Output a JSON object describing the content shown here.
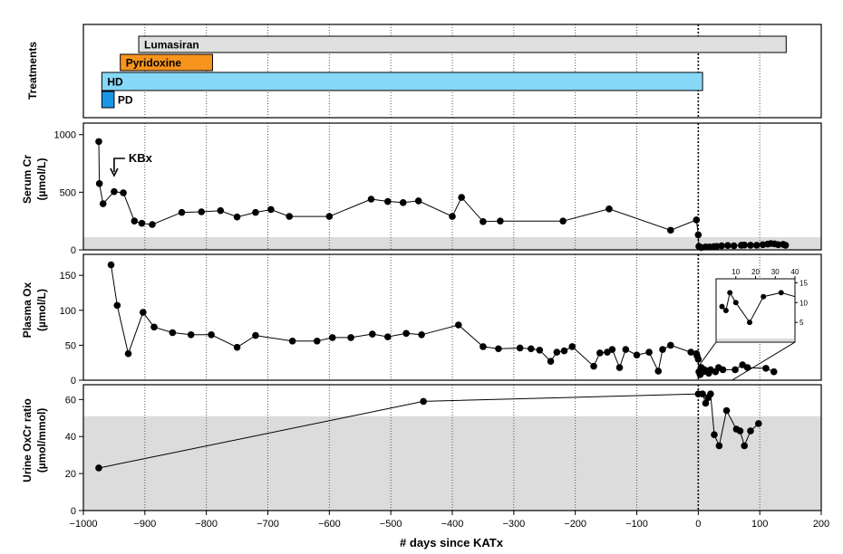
{
  "chart_data": {
    "type": "line",
    "x_axis": {
      "label": "# days since KATx",
      "ticks": [
        -1000,
        -900,
        -800,
        -700,
        -600,
        -500,
        -400,
        -300,
        -200,
        -100,
        0,
        100,
        200
      ],
      "tick_labels": [
        "−1000",
        "−900",
        "−800",
        "−700",
        "−600",
        "−500",
        "−400",
        "−300",
        "−200",
        "−100",
        "0",
        "100",
        "200"
      ],
      "range": [
        -1000,
        200
      ],
      "grid": "dotted vertical"
    },
    "treatments": {
      "ylabel": "Treatments",
      "bars": [
        {
          "label": "Lumasiran",
          "start": -910,
          "end": 143,
          "color": "#e0e0e0"
        },
        {
          "label": "Pyridoxine",
          "start": -940,
          "end": -790,
          "color": "#f7941d"
        },
        {
          "label": "HD",
          "start": -970,
          "end": 7,
          "color": "#87d8f7"
        },
        {
          "label": "PD",
          "start": -970,
          "end": -950,
          "color": "#1a96e6"
        }
      ]
    },
    "panels": [
      {
        "id": "serum-cr",
        "ylabel_line1": "Serum Cr",
        "ylabel_line2": "(µmol/L)",
        "ylim": [
          0,
          1100
        ],
        "yticks": [
          0,
          500,
          1000
        ],
        "normal_band": [
          0,
          110
        ],
        "annotation": {
          "text": "KBx",
          "x": -950
        },
        "points": [
          [
            -975,
            940
          ],
          [
            -974,
            575
          ],
          [
            -968,
            400
          ],
          [
            -950,
            505
          ],
          [
            -935,
            495
          ],
          [
            -917,
            250
          ],
          [
            -905,
            230
          ],
          [
            -888,
            220
          ],
          [
            -840,
            325
          ],
          [
            -808,
            330
          ],
          [
            -777,
            340
          ],
          [
            -750,
            285
          ],
          [
            -720,
            325
          ],
          [
            -695,
            350
          ],
          [
            -665,
            290
          ],
          [
            -600,
            290
          ],
          [
            -532,
            440
          ],
          [
            -505,
            420
          ],
          [
            -480,
            410
          ],
          [
            -455,
            425
          ],
          [
            -400,
            290
          ],
          [
            -385,
            455
          ],
          [
            -350,
            245
          ],
          [
            -322,
            250
          ],
          [
            -220,
            250
          ],
          [
            -145,
            355
          ],
          [
            -45,
            170
          ],
          [
            -3,
            260
          ],
          [
            0,
            130
          ],
          [
            1,
            30
          ],
          [
            5,
            20
          ],
          [
            12,
            25
          ],
          [
            18,
            25
          ],
          [
            25,
            28
          ],
          [
            30,
            30
          ],
          [
            38,
            35
          ],
          [
            48,
            38
          ],
          [
            58,
            35
          ],
          [
            70,
            40
          ],
          [
            75,
            42
          ],
          [
            85,
            40
          ],
          [
            95,
            40
          ],
          [
            105,
            45
          ],
          [
            113,
            50
          ],
          [
            118,
            55
          ],
          [
            124,
            52
          ],
          [
            130,
            45
          ],
          [
            138,
            48
          ],
          [
            142,
            40
          ]
        ]
      },
      {
        "id": "plasma-ox",
        "ylabel_line1": "Plasma Ox",
        "ylabel_line2": "(µmol/L)",
        "ylim": [
          0,
          180
        ],
        "yticks": [
          0,
          50,
          100,
          150
        ],
        "points": [
          [
            -955,
            165
          ],
          [
            -945,
            107
          ],
          [
            -927,
            38
          ],
          [
            -903,
            97
          ],
          [
            -885,
            76
          ],
          [
            -855,
            68
          ],
          [
            -825,
            65
          ],
          [
            -792,
            65
          ],
          [
            -750,
            47
          ],
          [
            -720,
            64
          ],
          [
            -660,
            56
          ],
          [
            -620,
            56
          ],
          [
            -595,
            61
          ],
          [
            -565,
            61
          ],
          [
            -530,
            66
          ],
          [
            -505,
            62
          ],
          [
            -475,
            67
          ],
          [
            -450,
            65
          ],
          [
            -390,
            79
          ],
          [
            -350,
            48
          ],
          [
            -325,
            45
          ],
          [
            -290,
            46
          ],
          [
            -272,
            45
          ],
          [
            -258,
            43
          ],
          [
            -240,
            27
          ],
          [
            -230,
            40
          ],
          [
            -218,
            42
          ],
          [
            -205,
            48
          ],
          [
            -170,
            20
          ],
          [
            -160,
            39
          ],
          [
            -148,
            40
          ],
          [
            -140,
            44
          ],
          [
            -128,
            18
          ],
          [
            -118,
            44
          ],
          [
            -100,
            36
          ],
          [
            -80,
            40
          ],
          [
            -65,
            13
          ],
          [
            -58,
            44
          ],
          [
            -45,
            50
          ],
          [
            -12,
            40
          ],
          [
            -3,
            38
          ],
          [
            -2,
            35
          ],
          [
            0,
            30
          ],
          [
            1,
            12
          ],
          [
            3,
            8
          ],
          [
            5,
            18
          ],
          [
            8,
            12
          ],
          [
            10,
            15
          ],
          [
            14,
            13
          ],
          [
            17,
            10
          ],
          [
            20,
            15
          ],
          [
            28,
            12
          ],
          [
            33,
            18
          ],
          [
            40,
            15
          ],
          [
            60,
            15
          ],
          [
            72,
            22
          ],
          [
            80,
            18
          ],
          [
            110,
            17
          ],
          [
            123,
            12
          ]
        ],
        "inset": {
          "xticks": [
            10,
            20,
            30,
            40
          ],
          "yticks": [
            5,
            10,
            15
          ],
          "xlim": [
            0,
            40
          ],
          "ylim": [
            0,
            16
          ],
          "points": [
            [
              3,
              9
            ],
            [
              5,
              8
            ],
            [
              7,
              12.5
            ],
            [
              10,
              10
            ],
            [
              17,
              5
            ],
            [
              24,
              11.5
            ],
            [
              33,
              12.5
            ]
          ]
        }
      },
      {
        "id": "urine-oxcr",
        "ylabel_line1": "Urine OxCr ratio",
        "ylabel_line2": "(µmol/mmol)",
        "ylim": [
          0,
          68
        ],
        "yticks": [
          0,
          20,
          40,
          60
        ],
        "normal_band": [
          0,
          51
        ],
        "points": [
          [
            -975,
            23
          ],
          [
            -447,
            59
          ],
          [
            0,
            63
          ],
          [
            7,
            63
          ],
          [
            12,
            58
          ],
          [
            16,
            61
          ],
          [
            20,
            63
          ],
          [
            26,
            41
          ],
          [
            34,
            35
          ],
          [
            46,
            54
          ],
          [
            62,
            44
          ],
          [
            68,
            43
          ],
          [
            75,
            35
          ],
          [
            85,
            43
          ],
          [
            98,
            47
          ]
        ]
      }
    ]
  }
}
